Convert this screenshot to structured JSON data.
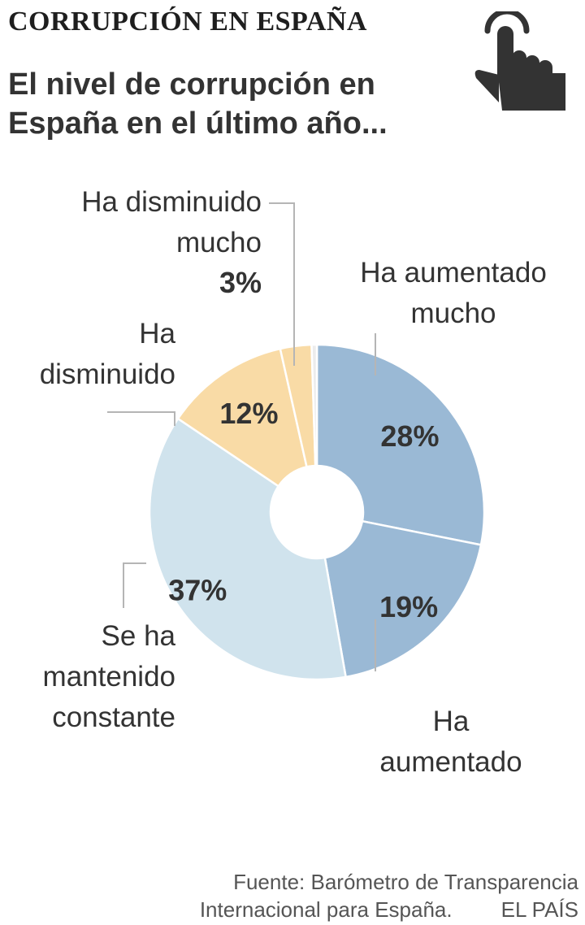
{
  "kicker": "CORRUPCIÓN EN ESPAÑA",
  "subtitle_lines": [
    "El nivel de corrupción en",
    "España en el último año..."
  ],
  "icon": "pointing-hand-icon",
  "colors": {
    "ha_aumentado_mucho": "#9ab9d5",
    "ha_aumentado": "#9ab9d5",
    "se_ha_mantenido_constante": "#d0e3ed",
    "ha_disminuido": "#f9dba6",
    "ha_disminuido_mucho": "#f9dba6",
    "no_responde": "#ececec"
  },
  "chart_data": {
    "type": "pie",
    "donut": true,
    "title": "",
    "slices": [
      {
        "label": "Ha aumentado mucho",
        "label_lines": [
          "Ha aumentado",
          "mucho"
        ],
        "value": 28,
        "value_label": "28%"
      },
      {
        "label": "Ha aumentado",
        "label_lines": [
          "Ha",
          "aumentado"
        ],
        "value": 19,
        "value_label": "19%"
      },
      {
        "label": "Se ha mantenido constante",
        "label_lines": [
          "Se ha",
          "mantenido",
          "constante"
        ],
        "value": 37,
        "value_label": "37%"
      },
      {
        "label": "Ha disminuido",
        "label_lines": [
          "Ha",
          "disminuido"
        ],
        "value": 12,
        "value_label": "12%"
      },
      {
        "label": "Ha disminuido mucho",
        "label_lines": [
          "Ha disminuido",
          "mucho"
        ],
        "value": 3,
        "value_label": "3%"
      },
      {
        "label": "",
        "label_lines": [],
        "value": 0.5,
        "value_label": ""
      }
    ]
  },
  "source": {
    "line1": "Fuente: Barómetro de Transparencia",
    "line2": "Internacional para España.",
    "brand": "EL PAÍS"
  }
}
